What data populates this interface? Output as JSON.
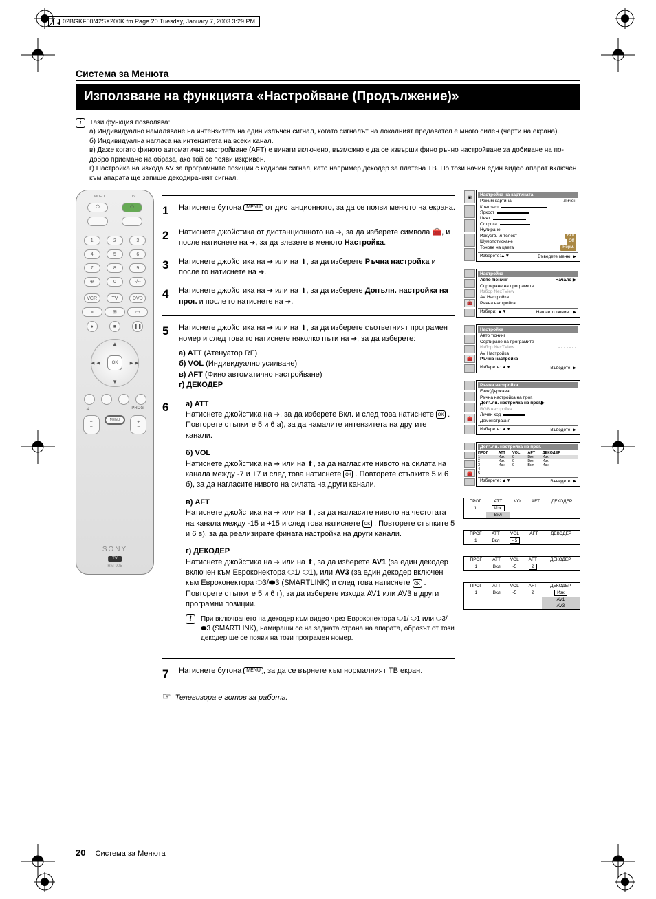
{
  "print_header": "02BGKF50/42SX200K.fm  Page 20  Tuesday, January 7, 2003  3:29 PM",
  "section_label": "Система за Менюта",
  "title": "Използване на функцията «Настройване (Продължение)»",
  "intro_lead": "Тази функция позволява:",
  "intro_a": "a) Индивидуално намаляване на интензитета на един излъчен сигнал, когато сигналът на локалният предавател е много силен (черти на екрана).",
  "intro_b": "б) Индивидуална нагласа на интензитета на всеки канал.",
  "intro_c": "в) Даже когато финото автоматично настройване (AFT) е винаги включено, възможно е да се извърши фино ръчно настройване за добиване на по-добро приемане на образа, ако той се появи изкривен.",
  "intro_d": "г) Настройка на изхода AV за програмните позиции с кодиран сигнал, като например декодер за платена ТВ. По този начин един видео апарат включен към апарата ще запише декодираният сигнал.",
  "step1_a": "Натиснете бутона ",
  "step1_b": " от дистанционното, за да се появи менюто на екрана.",
  "step2_a": "Натиснете джойстика от дистанционното на ",
  "step2_b": ", за да изберете символа ",
  "step2_c": ", и после натиснете на ",
  "step2_d": ", за да влезете в менюто ",
  "step2_e": "Настройка",
  "step3_a": "Натиснете джойстика на ",
  "step3_b": " или на ",
  "step3_c": ", за да изберете ",
  "step3_d": "Ръчна настройка",
  "step3_e": " и после го натиснете на ",
  "step4_a": "Натиснете джойстика на ",
  "step4_b": " или на ",
  "step4_c": ", за да изберете ",
  "step4_d": "Допълн. настройка на прог.",
  "step4_e": " и после го натиснете на ",
  "step5_a": "Натиснете джойстика на ",
  "step5_b": " или на ",
  "step5_c": ", за да изберете съответният програмен номер и след това го натиснете няколко пъти на ",
  "step5_d": ", за да изберете:",
  "step5_opts_a": "а) ATT",
  "step5_opts_a2": " (Атенуатор RF)",
  "step5_opts_b": "б) VOL",
  "step5_opts_b2": " (Индивидуално усилване)",
  "step5_opts_c": "в) AFT",
  "step5_opts_c2": " (Фино автоматично настройване)",
  "step5_opts_d": "г) ДЕКОДЕР",
  "step6_a_h": "а)  ATT",
  "step6_a_t1": "Натиснете джойстика на ",
  "step6_a_t2": ", за да изберете Вкл. и след това натиснете ",
  "step6_a_t3": " . Повторете стъпките 5 и 6 а), за да намалите интензитета на другите канали.",
  "step6_b_h": "б) VOL",
  "step6_b_t1": "Натиснете джойстика на ",
  "step6_b_t2": " или на ",
  "step6_b_t3": ", за да нагласите нивото на силата на канала между -7 и +7 и след това натиснете ",
  "step6_b_t4": " . Повторете стъпките 5 и 6 б), за да нагласите нивото на силата на други канали.",
  "step6_c_h": "в) AFT",
  "step6_c_t1": "Натиснете джойстика на ",
  "step6_c_t2": " или на ",
  "step6_c_t3": ", за да нагласите нивото на честотата на канала между -15 и +15 и след това натиснете ",
  "step6_c_t4": " . Повторете стъпките 5 и 6 в), за да реализирате фината настройка на други канали.",
  "step6_d_h": "г) ДЕКОДЕР",
  "step6_d_t1": "Натиснете джойстика на ",
  "step6_d_t2": " или на ",
  "step6_d_t3": ", за да изберете ",
  "step6_d_t4": "AV1",
  "step6_d_t5": " (за един декодер включен към Евроконектора ",
  "step6_d_t6": "1/ ",
  "step6_d_t7": "1), или ",
  "step6_d_t8": "AV3",
  "step6_d_t9": " (за един декодер включен към Евроконектора ",
  "step6_d_t10": "3/",
  "step6_d_t11": "3 (SMARTLINK) и след това натиснете ",
  "step6_d_t12": " . Повторете стъпките 5 и 6 г), за да изберете изхода AV1 или AV3 в други програмни позиции.",
  "step6_note1": "При включването на декодер към видео чрез Евроконектора ",
  "step6_note2": "1/ ",
  "step6_note3": "1 или ",
  "step6_note4": "3/",
  "step6_note5": "3 (SMARTLINK), намиращи се на задната страна на апарата, образът от този декодер ще се появи на този програмен номер.",
  "step7_a": "Натиснете бутона ",
  "step7_b": ", за да се върнете към нормалният ТВ екран.",
  "ready": "Телевизора е готов за работа.",
  "footer_page": "20",
  "footer_label": "Система за Менюта",
  "remote": {
    "logo": "SONY",
    "tv": "TV",
    "model": "RM-905",
    "ok": "OK",
    "video": "VIDEO",
    "tvio": "TV",
    "io": "I / ",
    "prog": "PROG",
    "menu": "MENU",
    "vcr": "VCR",
    "dvd": "DVD"
  },
  "menu_key": "MENU",
  "ok_key": "OK",
  "osd1": {
    "hdr": "Настройка на картината",
    "rows": [
      {
        "l": "Режим картина",
        "r": "Личен"
      },
      {
        "l": "Контраст",
        "bar": 60
      },
      {
        "l": "Яркост",
        "bar": 40
      },
      {
        "l": "Цвят",
        "bar": 40
      },
      {
        "l": "Острота",
        "bar": 40
      },
      {
        "l": "Нулиране",
        "r": ""
      },
      {
        "l": "Изкуств. интелект",
        "tag": "Вкл"
      },
      {
        "l": "Шумопотискане",
        "tag": "Off"
      },
      {
        "l": "Тонове на цвета",
        "tag": "Норм."
      }
    ],
    "foot_l": "Изберете:▲▼",
    "foot_r": "Въведете меню: ▶"
  },
  "osd2": {
    "hdr": "Настройка",
    "rows": [
      {
        "l": "Авто тюнинг",
        "r": "Начало ▶",
        "hl": true
      },
      {
        "l": "Сортиране на програмите"
      },
      {
        "l": "Избор NexTView",
        "dim": true
      },
      {
        "l": "AV Настройка"
      },
      {
        "l": "Ръчна настройка"
      }
    ],
    "foot_l": "Избери: ▲▼",
    "foot_r": "Нач.авто тюнинг: ▶"
  },
  "osd3": {
    "hdr": "Настройка",
    "rows": [
      {
        "l": "Авто тюнинг"
      },
      {
        "l": "Сортиране на програмите"
      },
      {
        "l": "Избор NexTView",
        "dim": true,
        "r": "- - - - - - -"
      },
      {
        "l": "AV Настройка"
      },
      {
        "l": "Ръчна настройка",
        "hl": true
      }
    ],
    "foot_l": "Изберете: ▲▼",
    "foot_r": "Въведете: ▶"
  },
  "osd4": {
    "hdr": "Ръчна настройка",
    "rows": [
      {
        "l": "Език/Държава"
      },
      {
        "l": "Ръчна настройка на прог."
      },
      {
        "l": "Допълн. настройка на прог.▶",
        "hl": true
      },
      {
        "l": "RGB настройка",
        "dim": true
      },
      {
        "l": "Личен код",
        "bar": 30
      },
      {
        "l": "Демонстрация"
      }
    ],
    "foot_l": "Изберете: ▲▼",
    "foot_r": "Въведете: ▶"
  },
  "osd5": {
    "hdr": "Допълн. настройка на прог.",
    "table_head": [
      "ПРОГ",
      "ATT",
      "VOL",
      "AFT",
      "ДЕКОДЕР"
    ],
    "table_rows": [
      [
        "1",
        "Изк",
        "0",
        "Вкл",
        "Изк"
      ],
      [
        "2",
        "Изк",
        "0",
        "Вкл",
        "Изк"
      ],
      [
        "3",
        "Изк",
        "0",
        "Вкл",
        "Изк"
      ],
      [
        "4",
        "",
        "",
        "",
        ""
      ],
      [
        "5",
        "",
        "",
        "",
        ""
      ]
    ],
    "foot_l": "Изберете: ▲▼",
    "foot_r": "Въведете: ▶"
  },
  "mt_head": [
    "ПРОГ",
    "ATT",
    "VOL",
    "AFT",
    "ДЕКОДЕР"
  ],
  "mt1": {
    "cells": [
      "1",
      "Изк",
      "",
      "",
      ""
    ],
    "sub": "Вкл",
    "hi": 1
  },
  "mt2": {
    "cells": [
      "1",
      "Вкл",
      "- 5",
      "",
      ""
    ],
    "hi": 2
  },
  "mt3": {
    "cells": [
      "1",
      "Вкл",
      "-5",
      "2",
      ""
    ],
    "hi": 3
  },
  "mt4": {
    "cells": [
      "1",
      "Вкл",
      "-5",
      "2",
      "Изк"
    ],
    "hi": 4,
    "sub1": "AV1",
    "sub2": "AV3"
  }
}
